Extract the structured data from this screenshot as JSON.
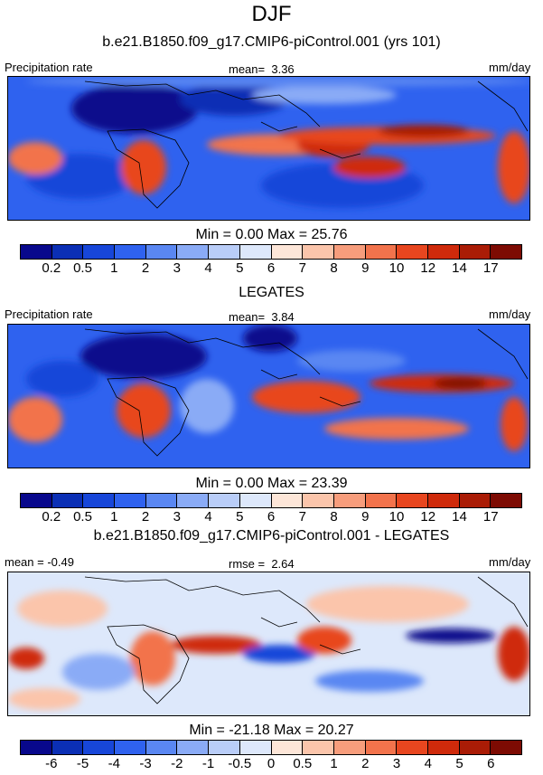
{
  "season": "DJF",
  "model_title": "b.e21.B1850.f09_g17.CMIP6-piControl.001 (yrs 101)",
  "panels": [
    {
      "left": "Precipitation rate",
      "center_label": "mean=",
      "center_value": "3.36",
      "right": "mm/day",
      "minmax_text": "Min =   0.00 Max =  25.76"
    },
    {
      "title": "LEGATES",
      "left": "Precipitation rate",
      "center_label": "mean=",
      "center_value": "3.84",
      "right": "mm/day",
      "minmax_text": "Min =   0.00 Max =  23.39"
    },
    {
      "title": "b.e21.B1850.f09_g17.CMIP6-piControl.001 - LEGATES",
      "left": "mean =  -0.49",
      "center_label": "rmse =",
      "center_value": "2.64",
      "right": "mm/day",
      "minmax_text": "Min = -21.18 Max =  20.27"
    }
  ],
  "colorbar_abs": {
    "colors": [
      "#08088c",
      "#0b2fb5",
      "#1746d9",
      "#2f62ef",
      "#5a87f2",
      "#8aabf6",
      "#b9cdf8",
      "#dde8fb",
      "#fde6d8",
      "#fbc5ab",
      "#f79d7c",
      "#f2734c",
      "#e8461f",
      "#cf2a0b",
      "#aa1c06",
      "#7d0b03"
    ],
    "ticks": [
      "0.2",
      "0.5",
      "1",
      "2",
      "3",
      "4",
      "5",
      "6",
      "7",
      "8",
      "9",
      "10",
      "12",
      "14",
      "17"
    ]
  },
  "colorbar_diff": {
    "colors": [
      "#08088c",
      "#0b2fb5",
      "#1746d9",
      "#2f62ef",
      "#5a87f2",
      "#8aabf6",
      "#b9cdf8",
      "#dde8fb",
      "#fde6d8",
      "#fbc5ab",
      "#f79d7c",
      "#f2734c",
      "#e8461f",
      "#cf2a0b",
      "#aa1c06",
      "#7d0b03"
    ],
    "ticks": [
      "-6",
      "-5",
      "-4",
      "-3",
      "-2",
      "-1",
      "-0.5",
      "0",
      "0.5",
      "1",
      "2",
      "3",
      "4",
      "5",
      "6"
    ]
  }
}
